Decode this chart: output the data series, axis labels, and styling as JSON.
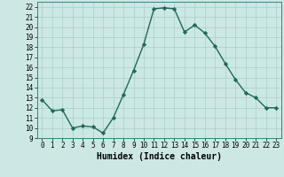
{
  "x": [
    0,
    1,
    2,
    3,
    4,
    5,
    6,
    7,
    8,
    9,
    10,
    11,
    12,
    13,
    14,
    15,
    16,
    17,
    18,
    19,
    20,
    21,
    22,
    23
  ],
  "y": [
    12.8,
    11.7,
    11.8,
    10.0,
    10.2,
    10.1,
    9.5,
    11.0,
    13.3,
    15.7,
    18.3,
    21.8,
    21.9,
    21.8,
    19.5,
    20.2,
    19.4,
    18.1,
    16.4,
    14.8,
    13.5,
    13.0,
    12.0,
    12.0
  ],
  "xlabel": "Humidex (Indice chaleur)",
  "xlim": [
    -0.5,
    23.5
  ],
  "ylim": [
    9,
    22.5
  ],
  "yticks": [
    9,
    10,
    11,
    12,
    13,
    14,
    15,
    16,
    17,
    18,
    19,
    20,
    21,
    22
  ],
  "xticks": [
    0,
    1,
    2,
    3,
    4,
    5,
    6,
    7,
    8,
    9,
    10,
    11,
    12,
    13,
    14,
    15,
    16,
    17,
    18,
    19,
    20,
    21,
    22,
    23
  ],
  "line_color": "#1a6b5a",
  "marker_color": "#1a6b5a",
  "bg_color": "#cce8e4",
  "grid_color": "#aacccc"
}
